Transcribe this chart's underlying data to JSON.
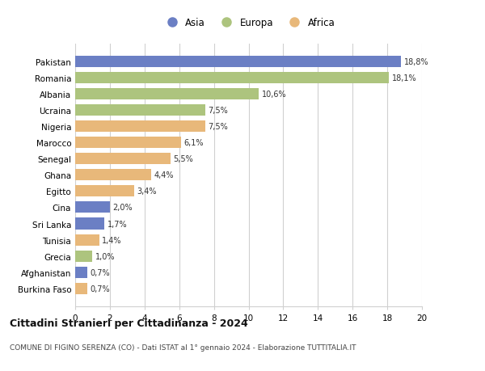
{
  "categories": [
    "Pakistan",
    "Romania",
    "Albania",
    "Ucraina",
    "Nigeria",
    "Marocco",
    "Senegal",
    "Ghana",
    "Egitto",
    "Cina",
    "Sri Lanka",
    "Tunisia",
    "Grecia",
    "Afghanistan",
    "Burkina Faso"
  ],
  "values": [
    18.8,
    18.1,
    10.6,
    7.5,
    7.5,
    6.1,
    5.5,
    4.4,
    3.4,
    2.0,
    1.7,
    1.4,
    1.0,
    0.7,
    0.7
  ],
  "labels": [
    "18,8%",
    "18,1%",
    "10,6%",
    "7,5%",
    "7,5%",
    "6,1%",
    "5,5%",
    "4,4%",
    "3,4%",
    "2,0%",
    "1,7%",
    "1,4%",
    "1,0%",
    "0,7%",
    "0,7%"
  ],
  "continents": [
    "Asia",
    "Europa",
    "Europa",
    "Europa",
    "Africa",
    "Africa",
    "Africa",
    "Africa",
    "Africa",
    "Asia",
    "Asia",
    "Africa",
    "Europa",
    "Asia",
    "Africa"
  ],
  "colors": {
    "Asia": "#6b7fc4",
    "Europa": "#adc47e",
    "Africa": "#e8b87a"
  },
  "legend_labels": [
    "Asia",
    "Europa",
    "Africa"
  ],
  "xlim": [
    0,
    20
  ],
  "xticks": [
    0,
    2,
    4,
    6,
    8,
    10,
    12,
    14,
    16,
    18,
    20
  ],
  "title": "Cittadini Stranieri per Cittadinanza - 2024",
  "subtitle": "COMUNE DI FIGINO SERENZA (CO) - Dati ISTAT al 1° gennaio 2024 - Elaborazione TUTTITALIA.IT",
  "bg_color": "#ffffff",
  "grid_color": "#d0d0d0",
  "bar_height": 0.7
}
